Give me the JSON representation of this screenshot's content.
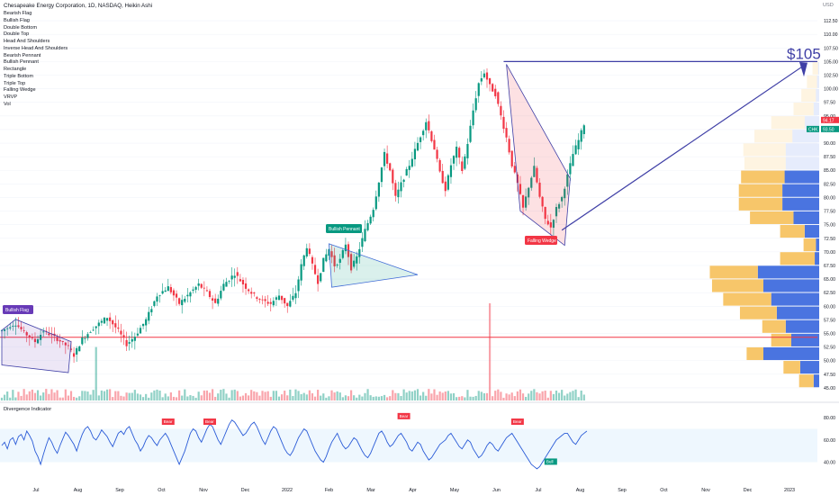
{
  "chart_title": "Chesapeake Energy Corporation, 1D, NASDAQ, Heikin Ashi",
  "currency": "USD",
  "indicators": [
    "Bearish Flag",
    "Bullish Flag",
    "Double Bottom",
    "Double Top",
    "Head And Shoulders",
    "Inverse Head And Shoulders",
    "Bearish Pennant",
    "Bullish Pennant",
    "Rectangle",
    "Triple Bottom",
    "Triple Top",
    "Falling Wedge",
    "VRVP",
    "Vol"
  ],
  "oscillator_title": "Divergence Indicator",
  "chart_data": {
    "type": "candlestick",
    "price_axis": {
      "ticks": [
        "112.50",
        "110.00",
        "107.50",
        "105.00",
        "102.50",
        "100.00",
        "97.50",
        "95.00",
        "92.50",
        "90.00",
        "87.50",
        "85.00",
        "82.50",
        "80.00",
        "77.50",
        "75.00",
        "72.50",
        "70.00",
        "67.50",
        "65.00",
        "62.50",
        "60.00",
        "57.50",
        "55.00",
        "52.50",
        "50.00",
        "47.50",
        "45.00"
      ],
      "ylim": [
        44,
        114
      ]
    },
    "time_axis": {
      "ticks": [
        "Jul",
        "Aug",
        "Sep",
        "Oct",
        "Nov",
        "Dec",
        "2022",
        "Feb",
        "Mar",
        "Apr",
        "May",
        "Jun",
        "Jul",
        "Aug",
        "Sep",
        "Oct",
        "Nov",
        "Dec",
        "2023"
      ]
    },
    "price_labels": [
      {
        "text": "94.17",
        "y": 94.17,
        "color": "#f23645"
      },
      {
        "text": "CHK",
        "y": 93.5,
        "color": "#089981"
      },
      {
        "text": "93.50",
        "y": 93.5,
        "color": "#089981"
      }
    ],
    "price_path": [
      [
        0,
        55.5
      ],
      [
        5,
        56.8
      ],
      [
        8,
        55.2
      ],
      [
        12,
        53.5
      ],
      [
        15,
        55.5
      ],
      [
        20,
        54.0
      ],
      [
        24,
        52.5
      ],
      [
        26,
        51.0
      ],
      [
        29,
        54.0
      ],
      [
        33,
        56.0
      ],
      [
        38,
        58.0
      ],
      [
        42,
        55.5
      ],
      [
        45,
        53.0
      ],
      [
        48,
        54.5
      ],
      [
        52,
        57.5
      ],
      [
        56,
        62.0
      ],
      [
        60,
        63.5
      ],
      [
        64,
        60.5
      ],
      [
        67,
        62.0
      ],
      [
        71,
        64.0
      ],
      [
        74,
        62.5
      ],
      [
        77,
        60.5
      ],
      [
        80,
        64.0
      ],
      [
        84,
        66.0
      ],
      [
        88,
        63.5
      ],
      [
        91,
        62.0
      ],
      [
        94,
        61.0
      ],
      [
        97,
        60.5
      ],
      [
        100,
        62.0
      ],
      [
        103,
        60.0
      ],
      [
        106,
        62.5
      ],
      [
        108,
        67.5
      ],
      [
        110,
        71.0
      ],
      [
        112,
        67.5
      ],
      [
        114,
        64.5
      ],
      [
        116,
        68.5
      ],
      [
        118,
        70.5
      ],
      [
        120,
        67.5
      ],
      [
        122,
        68.5
      ],
      [
        124,
        71.5
      ],
      [
        126,
        67.0
      ],
      [
        128,
        69.0
      ],
      [
        131,
        74.0
      ],
      [
        134,
        78.0
      ],
      [
        136,
        83.0
      ],
      [
        138,
        88.0
      ],
      [
        140,
        85.0
      ],
      [
        142,
        80.0
      ],
      [
        144,
        82.5
      ],
      [
        147,
        86.0
      ],
      [
        150,
        90.0
      ],
      [
        153,
        94.0
      ],
      [
        156,
        89.0
      ],
      [
        158,
        84.5
      ],
      [
        160,
        81.5
      ],
      [
        162,
        86.0
      ],
      [
        164,
        89.0
      ],
      [
        166,
        85.0
      ],
      [
        168,
        90.0
      ],
      [
        170,
        96.0
      ],
      [
        172,
        101.0
      ],
      [
        174,
        103.0
      ],
      [
        176,
        100.5
      ],
      [
        178,
        99.0
      ],
      [
        180,
        95.0
      ],
      [
        182,
        91.0
      ],
      [
        184,
        86.0
      ],
      [
        186,
        82.5
      ],
      [
        188,
        78.0
      ],
      [
        190,
        82.0
      ],
      [
        192,
        85.5
      ],
      [
        194,
        80.0
      ],
      [
        196,
        76.0
      ],
      [
        198,
        74.5
      ],
      [
        200,
        78.0
      ],
      [
        202,
        80.0
      ],
      [
        204,
        84.0
      ],
      [
        206,
        88.0
      ],
      [
        208,
        90.5
      ],
      [
        210,
        93.5
      ]
    ],
    "volume_spikes": [
      {
        "t": 176,
        "ratio": 1.0
      },
      {
        "t": 34,
        "ratio": 0.55
      }
    ],
    "volume_profile": [
      {
        "price": 106.25,
        "up": 2.0,
        "down": 0
      },
      {
        "price": 103.75,
        "up": 10,
        "down": 2
      },
      {
        "price": 101.25,
        "up": 18,
        "down": 4
      },
      {
        "price": 98.75,
        "up": 26,
        "down": 6
      },
      {
        "price": 96.25,
        "up": 36,
        "down": 10
      },
      {
        "price": 93.75,
        "up": 60,
        "down": 26
      },
      {
        "price": 91.25,
        "up": 68,
        "down": 48
      },
      {
        "price": 88.75,
        "up": 76,
        "down": 60
      },
      {
        "price": 86.25,
        "up": 74,
        "down": 60
      },
      {
        "price": 83.75,
        "up": 78,
        "down": 62
      },
      {
        "price": 81.25,
        "up": 78,
        "down": 66
      },
      {
        "price": 78.75,
        "up": 78,
        "down": 66
      },
      {
        "price": 76.25,
        "up": 78,
        "down": 46
      },
      {
        "price": 73.75,
        "up": 44,
        "down": 26
      },
      {
        "price": 71.25,
        "up": 22,
        "down": 6
      },
      {
        "price": 68.75,
        "up": 62,
        "down": 8
      },
      {
        "price": 66.25,
        "up": 86,
        "down": 110
      },
      {
        "price": 63.75,
        "up": 92,
        "down": 100
      },
      {
        "price": 61.25,
        "up": 86,
        "down": 86
      },
      {
        "price": 58.75,
        "up": 66,
        "down": 76
      },
      {
        "price": 56.25,
        "up": 42,
        "down": 60
      },
      {
        "price": 53.75,
        "up": 36,
        "down": 50
      },
      {
        "price": 51.25,
        "up": 30,
        "down": 100
      },
      {
        "price": 48.75,
        "up": 30,
        "down": 34
      },
      {
        "price": 46.25,
        "up": 26,
        "down": 10
      }
    ],
    "target_label": "$105",
    "horizontal_lines": [
      {
        "y": 105.0,
        "color": "#3f3fa6"
      },
      {
        "y": 54.3,
        "color": "#f23645"
      }
    ],
    "annotations": [
      {
        "text": "Bullish Flag",
        "color": "#673ab7"
      },
      {
        "text": "Bullish Pennant",
        "color": "#089981"
      },
      {
        "text": "Falling Wedge",
        "color": "#f23645"
      }
    ],
    "oscillator": {
      "ticks": [
        "80.00",
        "60.00",
        "40.00"
      ],
      "ylim": [
        25,
        85
      ],
      "band": [
        40,
        70
      ],
      "markers": [
        {
          "text": "Bear",
          "color": "#f23645"
        },
        {
          "text": "Bear",
          "color": "#f23645"
        },
        {
          "text": "Bear",
          "color": "#f23645"
        },
        {
          "text": "Bear",
          "color": "#f23645"
        },
        {
          "text": "Bull",
          "color": "#089981"
        }
      ],
      "values": [
        55,
        58,
        52,
        60,
        62,
        56,
        63,
        65,
        60,
        68,
        64,
        59,
        50,
        45,
        38,
        47,
        55,
        62,
        58,
        52,
        48,
        55,
        61,
        67,
        64,
        60,
        56,
        50,
        58,
        65,
        70,
        72,
        68,
        62,
        60,
        64,
        69,
        66,
        63,
        58,
        54,
        60,
        66,
        68,
        65,
        70,
        72,
        66,
        60,
        56,
        50,
        54,
        60,
        64,
        62,
        58,
        55,
        60,
        63,
        66,
        62,
        56,
        50,
        44,
        38,
        44,
        50,
        58,
        66,
        70,
        68,
        62,
        58,
        64,
        70,
        74,
        72,
        66,
        60,
        56,
        62,
        68,
        74,
        78,
        76,
        72,
        68,
        64,
        66,
        70,
        74,
        76,
        72,
        66,
        60,
        56,
        62,
        68,
        72,
        70,
        64,
        58,
        52,
        48,
        46,
        50,
        56,
        62,
        66,
        70,
        68,
        62,
        56,
        50,
        46,
        42,
        40,
        45,
        52,
        58,
        62,
        66,
        60,
        55,
        52,
        54,
        58,
        62,
        60,
        55,
        50,
        46,
        44,
        48,
        54,
        60,
        66,
        68,
        64,
        58,
        54,
        56,
        60,
        64,
        66,
        62,
        58,
        52,
        50,
        54,
        58,
        56,
        50,
        46,
        42,
        44,
        48,
        52,
        56,
        58,
        60,
        64,
        66,
        62,
        58,
        54,
        52,
        56,
        60,
        58,
        52,
        48,
        44,
        46,
        50,
        55,
        58,
        56,
        52,
        50,
        54,
        58,
        62,
        64,
        66,
        62,
        58,
        54,
        50,
        46,
        42,
        38,
        36,
        34,
        36,
        40,
        44,
        48,
        52,
        56,
        60,
        62,
        64,
        66,
        66,
        62,
        58,
        56,
        60,
        64,
        66,
        68
      ]
    }
  }
}
